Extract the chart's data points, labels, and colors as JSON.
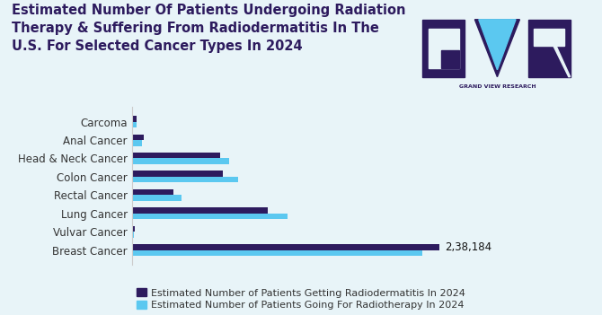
{
  "title": "Estimated Number Of Patients Undergoing Radiation\nTherapy & Suffering From Radiodermatitis In The\nU.S. For Selected Cancer Types In 2024",
  "background_color": "#e8f4f8",
  "categories": [
    "Breast Cancer",
    "Vulvar Cancer",
    "Lung Cancer",
    "Rectal Cancer",
    "Colon Cancer",
    "Head & Neck Cancer",
    "Anal Cancer",
    "Carcoma"
  ],
  "radiodermatitis_values": [
    238184,
    1500,
    105000,
    32000,
    70000,
    68000,
    8500,
    3500
  ],
  "radiotherapy_values": [
    225000,
    1200,
    120000,
    38000,
    82000,
    75000,
    7500,
    3000
  ],
  "dark_color": "#2d1b5e",
  "light_color": "#5bc8f0",
  "bar_height": 0.32,
  "annotation_text": "2,38,184",
  "legend_label1": "Estimated Number of Patients Getting Radiodermatitis In 2024",
  "legend_label2": "Estimated Number of Patients Going For Radiotherapy In 2024",
  "xlim": [
    0,
    280000
  ],
  "title_color": "#2d1b5e",
  "title_fontsize": 10.5,
  "axis_label_color": "#333333",
  "tick_label_fontsize": 8.5,
  "legend_fontsize": 8,
  "logo_dark": "#2d1b5e",
  "logo_cyan": "#5bc8f0"
}
